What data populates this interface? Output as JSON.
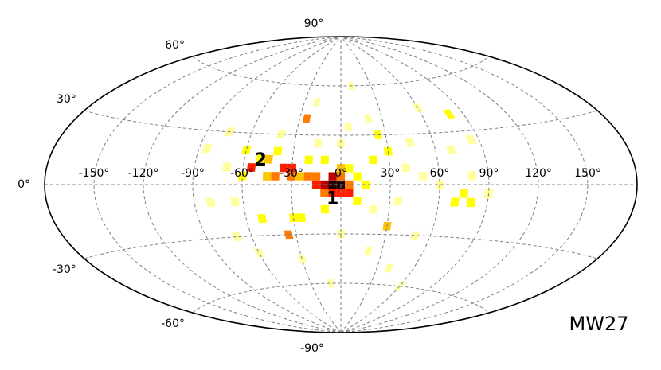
{
  "chart_data": {
    "type": "heatmap",
    "projection": "aitoff",
    "xlabel": "",
    "ylabel": "",
    "title": "",
    "xlim": [
      -180,
      180
    ],
    "ylim": [
      -90,
      90
    ],
    "grid": true,
    "lon_ticks": [
      -150,
      -120,
      -90,
      -60,
      -30,
      0,
      30,
      60,
      90,
      120,
      150
    ],
    "lon_tick_labels": [
      "-150°",
      "-120°",
      "-90°",
      "-60°",
      "-30°",
      "0°",
      "30°",
      "60°",
      "90°",
      "120°",
      "150°"
    ],
    "lat_ticks": [
      90,
      60,
      30,
      0,
      -30,
      -60,
      -90
    ],
    "lat_tick_labels": [
      "90°",
      "60°",
      "30°",
      "0°",
      "-30°",
      "-60°",
      "-90°"
    ],
    "colormap": [
      "#ffffff",
      "#ffffa0",
      "#ffff00",
      "#ffc400",
      "#ff7a00",
      "#ff1e00",
      "#c00000",
      "#200000"
    ],
    "cell_size_deg": [
      5,
      5
    ],
    "cells": [
      [
        -5,
        0,
        1.0
      ],
      [
        0,
        0,
        0.95
      ],
      [
        -10,
        0,
        0.8
      ],
      [
        -5,
        5,
        0.82
      ],
      [
        0,
        5,
        0.62
      ],
      [
        5,
        -5,
        0.78
      ],
      [
        -15,
        0,
        0.72
      ],
      [
        -10,
        -5,
        0.6
      ],
      [
        -5,
        -5,
        0.7
      ],
      [
        0,
        -5,
        0.74
      ],
      [
        -20,
        5,
        0.55
      ],
      [
        -15,
        5,
        0.5
      ],
      [
        5,
        0,
        0.6
      ],
      [
        -30,
        5,
        0.55
      ],
      [
        -30,
        10,
        0.65
      ],
      [
        -25,
        5,
        0.45
      ],
      [
        -35,
        10,
        0.78
      ],
      [
        -40,
        5,
        0.58
      ],
      [
        -45,
        5,
        0.45
      ],
      [
        -55,
        10,
        0.75
      ],
      [
        -60,
        5,
        0.35
      ],
      [
        -45,
        15,
        0.4
      ],
      [
        -40,
        20,
        0.3
      ],
      [
        -20,
        15,
        0.32
      ],
      [
        -10,
        15,
        0.3
      ],
      [
        0,
        10,
        0.45
      ],
      [
        5,
        10,
        0.3
      ],
      [
        10,
        5,
        0.3
      ],
      [
        15,
        0,
        0.25
      ],
      [
        20,
        15,
        0.3
      ],
      [
        30,
        20,
        0.35
      ],
      [
        -25,
        40,
        0.58
      ],
      [
        -35,
        -30,
        0.6
      ],
      [
        -25,
        -20,
        0.3
      ],
      [
        30,
        -25,
        0.4
      ],
      [
        75,
        -5,
        0.3
      ],
      [
        70,
        -10,
        0.28
      ],
      [
        80,
        -10,
        0.25
      ],
      [
        80,
        40,
        0.25
      ],
      [
        60,
        45,
        0.2
      ],
      [
        25,
        30,
        0.3
      ],
      [
        -50,
        15,
        0.25
      ],
      [
        -60,
        20,
        0.22
      ],
      [
        -70,
        10,
        0.2
      ],
      [
        -65,
        -10,
        0.2
      ],
      [
        -50,
        -20,
        0.25
      ],
      [
        -30,
        -20,
        0.28
      ],
      [
        -10,
        -15,
        0.22
      ],
      [
        10,
        -10,
        0.22
      ],
      [
        20,
        -15,
        0.2
      ],
      [
        40,
        10,
        0.18
      ],
      [
        50,
        5,
        0.15
      ],
      [
        60,
        0,
        0.14
      ],
      [
        80,
        5,
        0.12
      ],
      [
        70,
        20,
        0.14
      ],
      [
        -75,
        30,
        0.14
      ],
      [
        -80,
        -10,
        0.12
      ],
      [
        -60,
        -40,
        0.15
      ],
      [
        -30,
        -45,
        0.12
      ],
      [
        0,
        -30,
        0.15
      ],
      [
        20,
        -40,
        0.12
      ],
      [
        50,
        -30,
        0.12
      ],
      [
        40,
        -50,
        0.1
      ],
      [
        -20,
        50,
        0.14
      ],
      [
        0,
        25,
        0.18
      ],
      [
        20,
        40,
        0.12
      ],
      [
        -40,
        30,
        0.12
      ],
      [
        10,
        60,
        0.1
      ],
      [
        -10,
        -60,
        0.1
      ],
      [
        60,
        -60,
        0.1
      ],
      [
        -85,
        20,
        0.1
      ],
      [
        90,
        -5,
        0.12
      ],
      [
        85,
        25,
        0.1
      ],
      [
        -70,
        -30,
        0.12
      ],
      [
        45,
        25,
        0.12
      ],
      [
        35,
        -10,
        0.14
      ],
      [
        -15,
        25,
        0.16
      ],
      [
        5,
        35,
        0.12
      ]
    ],
    "annotations": [
      {
        "label": "1",
        "lon": -5,
        "lat": -8
      },
      {
        "label": "2",
        "lon": -50,
        "lat": 15
      }
    ],
    "name": "MW27"
  }
}
